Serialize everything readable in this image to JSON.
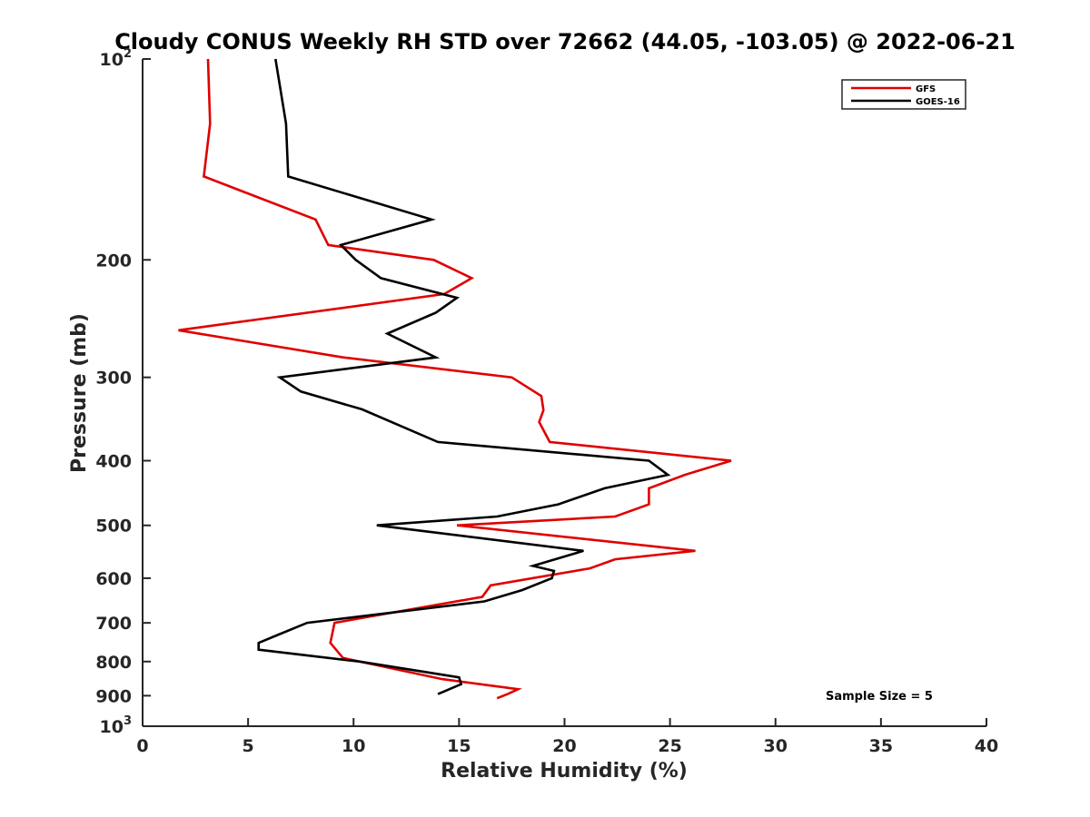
{
  "chart_data": {
    "type": "line",
    "title": "Cloudy CONUS Weekly RH STD over 72662 (44.05, -103.05) @ 2022-06-21",
    "xlabel": "Relative Humidity (%)",
    "ylabel": "Pressure (mb)",
    "xlim": [
      0,
      40
    ],
    "ylim": [
      1000,
      100
    ],
    "y_scale": "log",
    "y_reversed": true,
    "x_ticks": [
      "0",
      "5",
      "10",
      "15",
      "20",
      "25",
      "30",
      "35",
      "40"
    ],
    "y_ticks": [
      {
        "value": 100,
        "base": "10",
        "exp": "2"
      },
      {
        "value": 200,
        "label": "200"
      },
      {
        "value": 300,
        "label": "300"
      },
      {
        "value": 400,
        "label": "400"
      },
      {
        "value": 500,
        "label": "500"
      },
      {
        "value": 600,
        "label": "600"
      },
      {
        "value": 700,
        "label": "700"
      },
      {
        "value": 800,
        "label": "800"
      },
      {
        "value": 900,
        "label": "900"
      },
      {
        "value": 1000,
        "base": "10",
        "exp": "3"
      }
    ],
    "legend_position": "top-right",
    "grid": false,
    "annotation": "Sample Size = 5",
    "series": [
      {
        "name": "GFS",
        "color": "#e00000",
        "points": [
          [
            3.1,
            100
          ],
          [
            3.2,
            125
          ],
          [
            2.9,
            150
          ],
          [
            8.2,
            174
          ],
          [
            8.8,
            190
          ],
          [
            13.8,
            200
          ],
          [
            15.6,
            213
          ],
          [
            14.3,
            225
          ],
          [
            1.7,
            255
          ],
          [
            9.5,
            280
          ],
          [
            17.5,
            300
          ],
          [
            18.9,
            320
          ],
          [
            19.0,
            336
          ],
          [
            18.8,
            350
          ],
          [
            19.3,
            375
          ],
          [
            27.9,
            400
          ],
          [
            25.7,
            420
          ],
          [
            24.0,
            440
          ],
          [
            24.0,
            465
          ],
          [
            22.4,
            485
          ],
          [
            14.9,
            500
          ],
          [
            26.2,
            546
          ],
          [
            22.4,
            562
          ],
          [
            21.2,
            580
          ],
          [
            16.5,
            615
          ],
          [
            16.1,
            640
          ],
          [
            9.1,
            700
          ],
          [
            8.9,
            750
          ],
          [
            9.5,
            790
          ],
          [
            14.2,
            850
          ],
          [
            17.8,
            880
          ],
          [
            17.3,
            895
          ],
          [
            16.8,
            908
          ]
        ]
      },
      {
        "name": "GOES-16",
        "color": "#000000",
        "points": [
          [
            6.3,
            100
          ],
          [
            6.8,
            125
          ],
          [
            6.9,
            150
          ],
          [
            13.7,
            174
          ],
          [
            9.4,
            190
          ],
          [
            10.1,
            200
          ],
          [
            11.3,
            213
          ],
          [
            14.9,
            228
          ],
          [
            13.9,
            240
          ],
          [
            11.6,
            258
          ],
          [
            13.9,
            280
          ],
          [
            6.5,
            300
          ],
          [
            7.5,
            315
          ],
          [
            10.4,
            335
          ],
          [
            14.0,
            375
          ],
          [
            24.0,
            400
          ],
          [
            24.9,
            420
          ],
          [
            21.9,
            440
          ],
          [
            19.7,
            465
          ],
          [
            16.8,
            485
          ],
          [
            11.1,
            500
          ],
          [
            20.9,
            546
          ],
          [
            18.5,
            575
          ],
          [
            19.5,
            585
          ],
          [
            19.4,
            600
          ],
          [
            18.0,
            625
          ],
          [
            16.2,
            650
          ],
          [
            7.8,
            700
          ],
          [
            6.4,
            730
          ],
          [
            5.5,
            750
          ],
          [
            5.5,
            768
          ],
          [
            10.3,
            800
          ],
          [
            15.0,
            845
          ],
          [
            15.1,
            865
          ],
          [
            14.0,
            895
          ]
        ]
      }
    ]
  }
}
